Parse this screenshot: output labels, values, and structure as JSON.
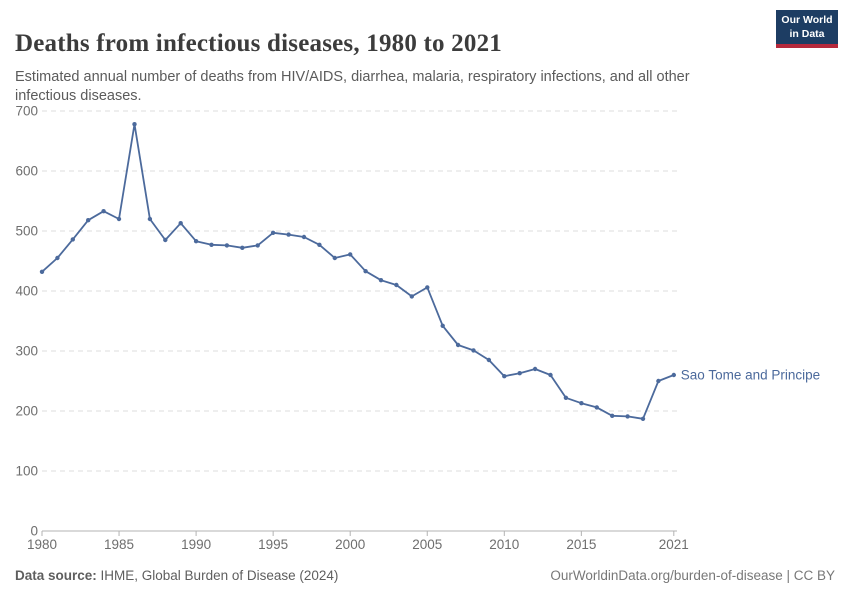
{
  "header": {
    "title": "Deaths from infectious diseases, 1980 to 2021",
    "subtitle": "Estimated annual number of deaths from HIV/AIDS, diarrhea, malaria, respiratory infections, and all other infectious diseases.",
    "logo": {
      "line1": "Our World",
      "line2": "in Data",
      "bg_color": "#1d3d63",
      "stripe_color": "#b5293c"
    }
  },
  "footer": {
    "source_label": "Data source:",
    "source_text": " IHME, Global Burden of Disease (2024)",
    "credit": "OurWorldinData.org/burden-of-disease | CC BY"
  },
  "chart_data": {
    "type": "line",
    "title": "Deaths from infectious diseases, 1980 to 2021",
    "entity": "Sao Tome and Principe",
    "x": [
      1980,
      1981,
      1982,
      1983,
      1984,
      1985,
      1986,
      1987,
      1988,
      1989,
      1990,
      1991,
      1992,
      1993,
      1994,
      1995,
      1996,
      1997,
      1998,
      1999,
      2000,
      2001,
      2002,
      2003,
      2004,
      2005,
      2006,
      2007,
      2008,
      2009,
      2010,
      2011,
      2012,
      2013,
      2014,
      2015,
      2016,
      2017,
      2018,
      2019,
      2020,
      2021
    ],
    "values": [
      432,
      455,
      486,
      518,
      533,
      520,
      678,
      520,
      485,
      513,
      483,
      477,
      476,
      472,
      476,
      497,
      494,
      490,
      477,
      455,
      461,
      433,
      418,
      410,
      391,
      406,
      342,
      310,
      301,
      285,
      258,
      263,
      270,
      260,
      222,
      213,
      206,
      192,
      191,
      187,
      250,
      260
    ],
    "xlim": [
      1980,
      2021
    ],
    "ylim": [
      0,
      700
    ],
    "xticks": [
      1980,
      1985,
      1990,
      1995,
      2000,
      2005,
      2010,
      2015,
      2021
    ],
    "yticks": [
      0,
      100,
      200,
      300,
      400,
      500,
      600,
      700
    ],
    "grid": "horizontal-dashed",
    "legend_position": "end-of-line-label",
    "colors": {
      "line": "#4C6A9C",
      "grid": "#dedede",
      "axis": "#b3b3b3",
      "tick_label": "#6e6e6e"
    }
  }
}
